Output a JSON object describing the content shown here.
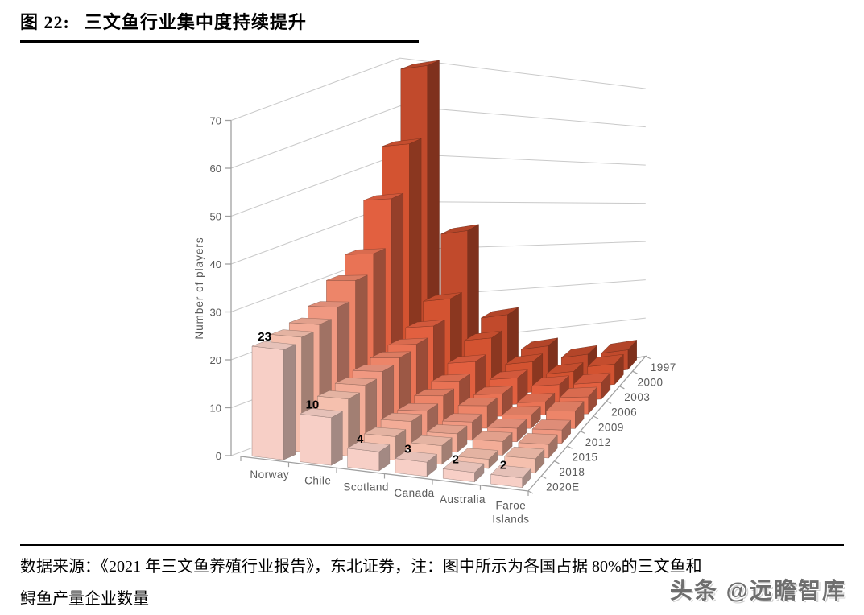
{
  "figure": {
    "label": "图 22:",
    "title": "三文鱼行业集中度持续提升"
  },
  "chart_data": {
    "type": "bar",
    "subtype": "3d-column",
    "ylabel": "Number of players",
    "ylim": [
      0,
      70
    ],
    "yticks": [
      0,
      10,
      20,
      30,
      40,
      50,
      60,
      70
    ],
    "grid": true,
    "legend": "none",
    "categories": [
      "Norway",
      "Chile",
      "Scotland",
      "Canada",
      "Australia",
      "Faroe Islands"
    ],
    "category_display": [
      [
        "Norway"
      ],
      [
        "Chile"
      ],
      [
        "Scotland"
      ],
      [
        "Canada"
      ],
      [
        "Australia"
      ],
      [
        "Faroe",
        "Islands"
      ]
    ],
    "years": [
      "1997",
      "2000",
      "2003",
      "2006",
      "2009",
      "2012",
      "2015",
      "2018",
      "2020E"
    ],
    "year_colors": [
      "#c14a2c",
      "#d35331",
      "#e26040",
      "#e97355",
      "#ed8569",
      "#f09881",
      "#f3ac97",
      "#f5c0ae",
      "#f7cfc6"
    ],
    "series": [
      {
        "name": "Norway",
        "values": [
          70,
          55,
          45,
          35,
          31,
          27,
          25,
          24,
          23
        ]
      },
      {
        "name": "Chile",
        "values": [
          35,
          22,
          18,
          16,
          15,
          14,
          13,
          12,
          10
        ]
      },
      {
        "name": "Scotland",
        "values": [
          16,
          13,
          10,
          8,
          7,
          6,
          6,
          5,
          4
        ]
      },
      {
        "name": "Canada",
        "values": [
          8,
          7,
          6,
          5,
          5,
          4,
          4,
          4,
          3
        ]
      },
      {
        "name": "Australia",
        "values": [
          5,
          4,
          4,
          3,
          3,
          3,
          3,
          2,
          2
        ]
      },
      {
        "name": "Faroe Islands",
        "values": [
          5,
          5,
          4,
          4,
          4,
          3,
          3,
          3,
          2
        ]
      }
    ],
    "labeled_year": "2020E",
    "front_row_labels": [
      "23",
      "10",
      "4",
      "3",
      "2",
      "2"
    ],
    "axis_text_color": "#595959",
    "gridline_color": "#c9c9c9",
    "axis_line_color": "#a0a0a0",
    "value_label_color": "#000000"
  },
  "footer": {
    "line1": "数据来源：《2021 年三文鱼养殖行业报告》，东北证券，注：图中所示为各国占据 80%的三文鱼和",
    "line2": "鲟鱼产量企业数量"
  },
  "watermark": "头条 @远瞻智库"
}
